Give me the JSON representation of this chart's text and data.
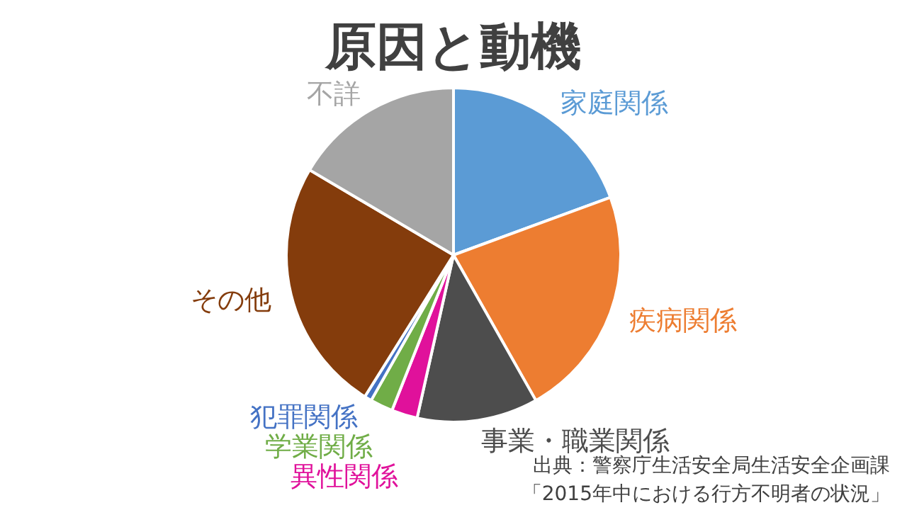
{
  "chart_data": {
    "type": "pie",
    "title": "原因と動機",
    "categories": [
      "家庭関係",
      "疾病関係",
      "事業・職業関係",
      "異性関係",
      "学業関係",
      "犯罪関係",
      "その他",
      "不詳"
    ],
    "values": [
      19.4,
      22.4,
      11.7,
      2.5,
      2.2,
      0.7,
      24.6,
      16.5
    ],
    "colors": [
      "#5b9bd5",
      "#ed7d31",
      "#4d4d4d",
      "#e0119b",
      "#70ad47",
      "#4472c4",
      "#843c0c",
      "#a5a5a5"
    ],
    "annotations": [
      "出典：警察庁生活安全局生活安全企画課",
      "「2015年中における行方不明者の状況」"
    ]
  }
}
